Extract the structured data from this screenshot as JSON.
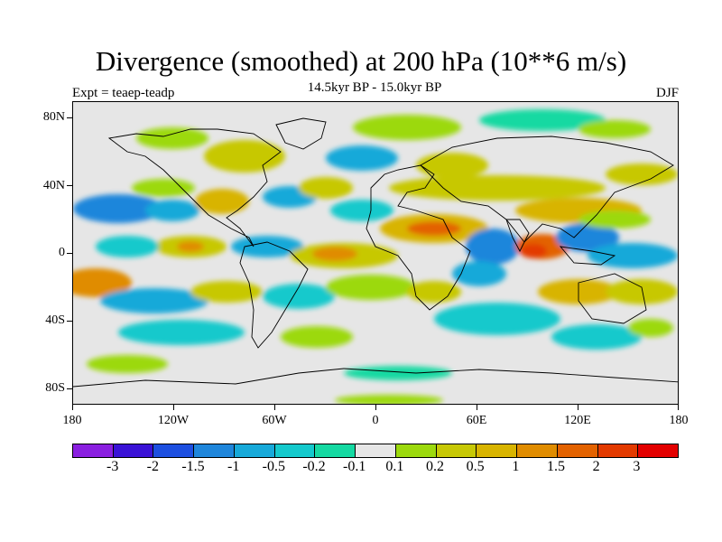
{
  "title": "Divergence (smoothed) at 200 hPa (10**6 m/s)",
  "subtitle": "14.5kyr BP - 15.0kyr BP",
  "left_label": "Expt = teaep-teadp",
  "right_label": "DJF",
  "map": {
    "projection": "cylindrical equidistant",
    "lon_range": [
      -180,
      180
    ],
    "lat_range": [
      -90,
      90
    ],
    "background_color": "#e6e6e6",
    "lat_ticks": [
      "80N",
      "40N",
      "0",
      "40S",
      "80S"
    ],
    "lon_ticks": [
      "180",
      "120W",
      "60W",
      "0",
      "60E",
      "120E",
      "180"
    ]
  },
  "colorbar": {
    "colors": [
      "#8a1fe0",
      "#3a12d6",
      "#1d4fe0",
      "#1f86db",
      "#17a9d9",
      "#14c9cc",
      "#15d9a2",
      "#e6e6e6",
      "#9cd90d",
      "#c7c805",
      "#d8b400",
      "#e08c00",
      "#e36200",
      "#e33a00",
      "#e30000"
    ],
    "labels": [
      "-3",
      "-2",
      "-1.5",
      "-1",
      "-0.5",
      "-0.2",
      "-0.1",
      "0.1",
      "0.2",
      "0.5",
      "1",
      "1.5",
      "2",
      "3"
    ]
  }
}
